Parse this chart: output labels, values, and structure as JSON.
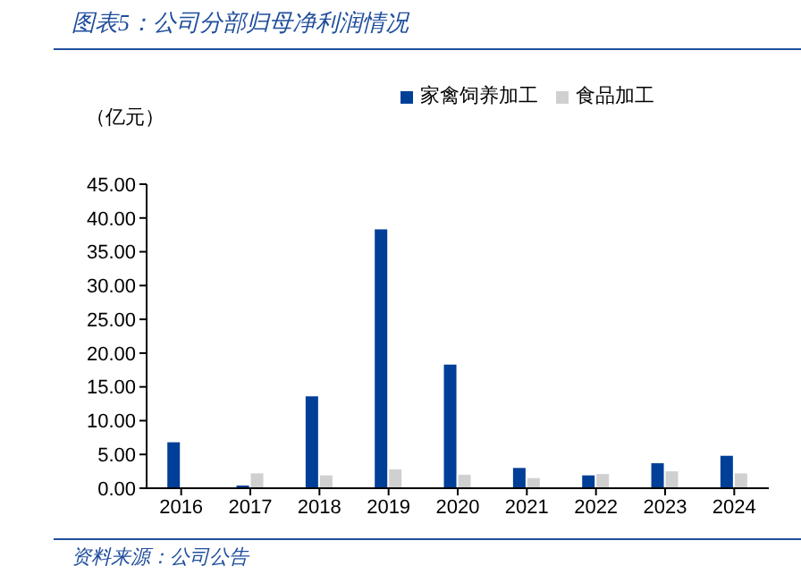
{
  "chart_data": {
    "type": "bar",
    "title": "图表5：公司分部归母净利润情况",
    "ylabel": "（亿元）",
    "categories": [
      "2016",
      "2017",
      "2018",
      "2019",
      "2020",
      "2021",
      "2022",
      "2023",
      "2024"
    ],
    "series": [
      {
        "name": "家禽饲养加工",
        "color": "#003f98",
        "values": [
          6.8,
          0.4,
          13.6,
          38.3,
          18.3,
          3.0,
          1.9,
          3.7,
          4.8
        ]
      },
      {
        "name": "食品加工",
        "color": "#d0d0d0",
        "values": [
          null,
          2.2,
          1.9,
          2.8,
          2.0,
          1.5,
          2.1,
          2.5,
          2.2
        ]
      }
    ],
    "ylim": [
      0,
      45
    ],
    "yticks": [
      {
        "value": 0,
        "label": "0.00"
      },
      {
        "value": 5,
        "label": "5.00"
      },
      {
        "value": 10,
        "label": "10.00"
      },
      {
        "value": 15,
        "label": "15.00"
      },
      {
        "value": 20,
        "label": "20.00"
      },
      {
        "value": 25,
        "label": "25.00"
      },
      {
        "value": 30,
        "label": "30.00"
      },
      {
        "value": 35,
        "label": "35.00"
      },
      {
        "value": 40,
        "label": "40.00"
      },
      {
        "value": 45,
        "label": "45.00"
      }
    ],
    "grid": false,
    "legend": "top",
    "annotations": [
      "资料来源：公司公告"
    ]
  }
}
